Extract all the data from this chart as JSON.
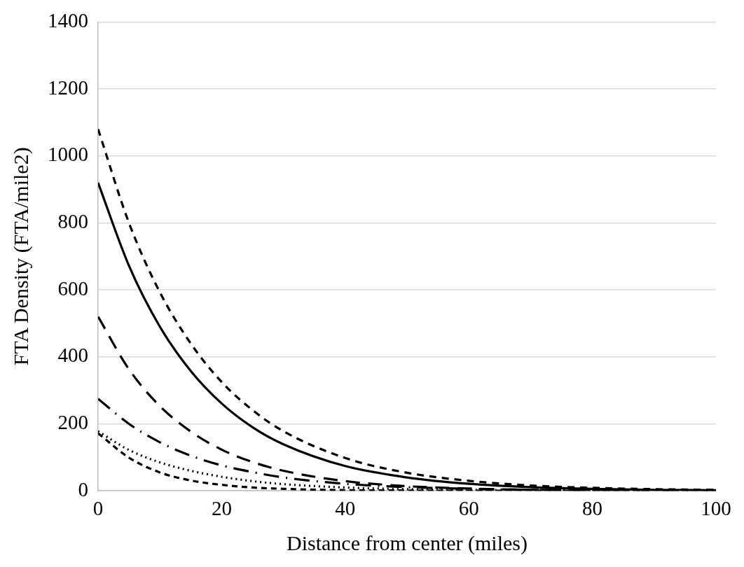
{
  "chart_data": {
    "type": "line",
    "xlabel": "Distance from center (miles)",
    "ylabel": "FTA Density (FTA/mile2)",
    "x": [
      0,
      5,
      10,
      15,
      20,
      25,
      30,
      40,
      50,
      60,
      70,
      80,
      90,
      100
    ],
    "series": [
      {
        "color": "#000000",
        "line_style": "dashed",
        "values": [
          1080,
          800,
          593,
          440,
          325,
          241,
          178,
          98,
          54,
          30,
          16,
          9,
          5,
          3
        ]
      },
      {
        "color": "#000000",
        "line_style": "solid",
        "values": [
          920,
          672,
          490,
          358,
          261,
          190,
          139,
          74,
          40,
          21,
          11,
          6,
          3,
          2
        ]
      },
      {
        "color": "#000000",
        "line_style": "dashed",
        "values": [
          520,
          363,
          253,
          177,
          123,
          86,
          60,
          29,
          14,
          7,
          3,
          2,
          1,
          0
        ]
      },
      {
        "color": "#000000",
        "line_style": "dashed",
        "values": [
          275,
          200,
          145,
          105,
          76,
          56,
          40,
          21,
          11,
          6,
          3,
          2,
          1,
          0
        ]
      },
      {
        "color": "#000000",
        "line_style": "dotted",
        "values": [
          178,
          122,
          85,
          60,
          42,
          29,
          20,
          10,
          5,
          3,
          2,
          1,
          0.6,
          0.4
        ]
      },
      {
        "color": "#000000",
        "line_style": "dashed",
        "values": [
          172,
          99,
          55,
          31,
          18,
          10,
          6,
          2,
          1,
          0,
          0,
          0,
          0,
          0
        ]
      }
    ],
    "xlim": [
      0,
      100
    ],
    "xticks": [
      0,
      20,
      40,
      60,
      80,
      100
    ],
    "ylim": [
      0,
      1400
    ],
    "yticks": [
      0,
      200,
      400,
      600,
      800,
      1000,
      1200,
      1400
    ],
    "grid": "y",
    "legend": false,
    "marker": "none"
  }
}
